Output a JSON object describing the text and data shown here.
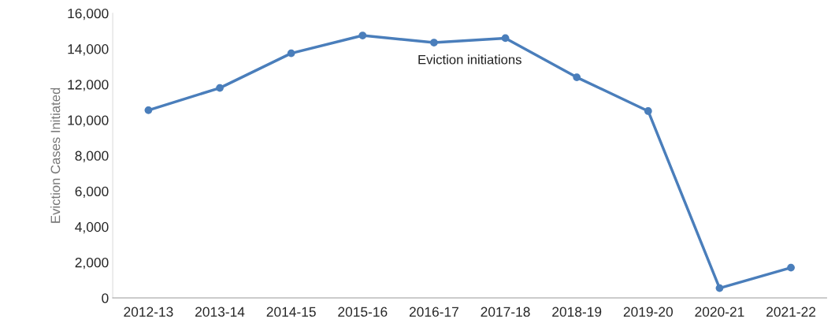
{
  "chart_data": {
    "type": "line",
    "ylabel": "Eviction Cases Initiated",
    "categories": [
      "2012-13",
      "2013-14",
      "2014-15",
      "2015-16",
      "2016-17",
      "2017-18",
      "2018-19",
      "2019-20",
      "2020-21",
      "2021-22"
    ],
    "series": [
      {
        "name": "Eviction initiations",
        "color": "#4a7ebb",
        "values": [
          10550,
          11800,
          13750,
          14750,
          14350,
          14600,
          12400,
          10500,
          550,
          1700
        ]
      }
    ],
    "ylim": [
      0,
      16000
    ],
    "yticks": [
      {
        "value": 0,
        "label": "0"
      },
      {
        "value": 2000,
        "label": "2,000"
      },
      {
        "value": 4000,
        "label": "4,000"
      },
      {
        "value": 6000,
        "label": "6,000"
      },
      {
        "value": 8000,
        "label": "8,000"
      },
      {
        "value": 10000,
        "label": "10,000"
      },
      {
        "value": 12000,
        "label": "12,000"
      },
      {
        "value": 14000,
        "label": "14,000"
      },
      {
        "value": 16000,
        "label": "16,000"
      }
    ],
    "grid": false,
    "legend": false,
    "marker": "circle",
    "line_style": "solid"
  }
}
